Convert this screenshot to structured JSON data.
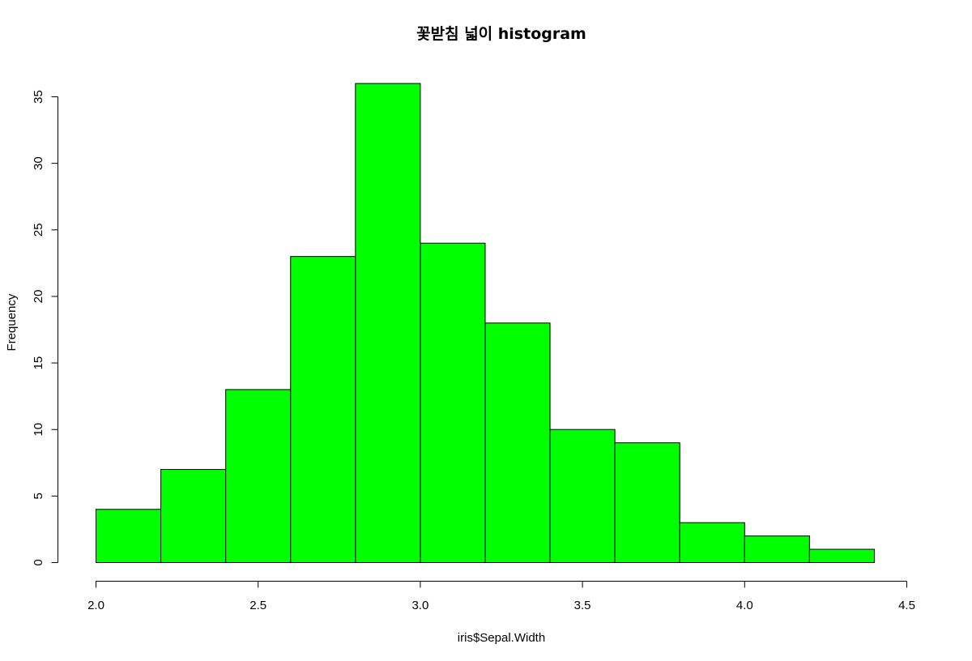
{
  "chart_data": {
    "type": "bar",
    "title": "꽃받침 넓이 histogram",
    "xlabel": "iris$Sepal.Width",
    "ylabel": "Frequency",
    "bin_edges": [
      2.0,
      2.2,
      2.4,
      2.6,
      2.8,
      3.0,
      3.2,
      3.4,
      3.6,
      3.8,
      4.0,
      4.2,
      4.4
    ],
    "values": [
      4,
      7,
      13,
      23,
      36,
      24,
      18,
      10,
      9,
      3,
      2,
      1
    ],
    "xlim": [
      2.0,
      4.5
    ],
    "ylim": [
      0,
      35
    ],
    "x_ticks": [
      "2.0",
      "2.5",
      "3.0",
      "3.5",
      "4.0",
      "4.5"
    ],
    "y_ticks": [
      "0",
      "5",
      "10",
      "15",
      "20",
      "25",
      "30",
      "35"
    ],
    "bar_color": "#00ff00",
    "border_color": "#000000",
    "grid": false
  }
}
